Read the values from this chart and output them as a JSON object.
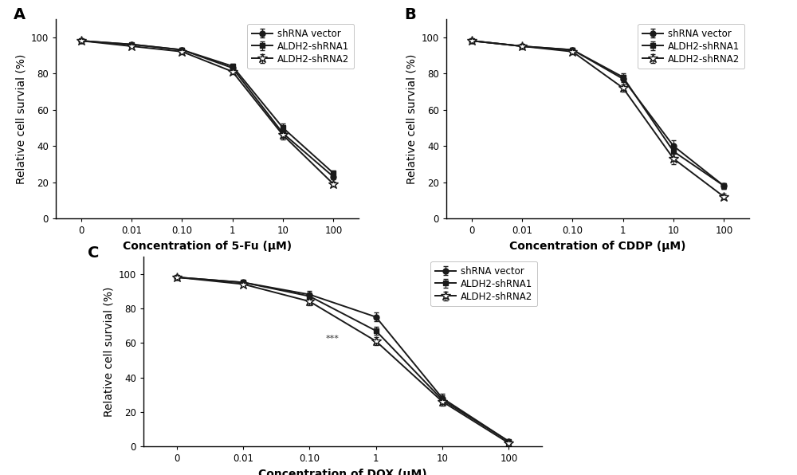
{
  "x_labels": [
    "0",
    "0.01",
    "0.10",
    "1",
    "10",
    "100"
  ],
  "x_positions": [
    0,
    1,
    2,
    3,
    4,
    5
  ],
  "panel_A": {
    "title": "A",
    "xlabel": "Concentration of 5-Fu (μM)",
    "ylabel": "Relative cell survial (%)",
    "series": [
      {
        "label": "shRNA vector",
        "marker": "o",
        "y": [
          98,
          96,
          93,
          83,
          47,
          23
        ],
        "yerr": [
          0.8,
          0.8,
          1.2,
          1.5,
          2.5,
          1.5
        ]
      },
      {
        "label": "ALDH2-shRNA1",
        "marker": "s",
        "y": [
          98,
          96,
          93,
          84,
          50,
          25
        ],
        "yerr": [
          0.8,
          0.8,
          1.2,
          1.5,
          2.5,
          1.5
        ]
      },
      {
        "label": "ALDH2-shRNA2",
        "marker": "*",
        "y": [
          98,
          95,
          92,
          81,
          46,
          19
        ],
        "yerr": [
          0.8,
          0.8,
          1.2,
          1.5,
          2.5,
          1.5
        ]
      }
    ]
  },
  "panel_B": {
    "title": "B",
    "xlabel": "Concentration of CDDP (μM)",
    "ylabel": "Relative cell survial (%)",
    "series": [
      {
        "label": "shRNA vector",
        "marker": "o",
        "y": [
          98,
          95,
          93,
          77,
          40,
          18
        ],
        "yerr": [
          0.8,
          0.8,
          1.2,
          2.0,
          3.0,
          1.5
        ]
      },
      {
        "label": "ALDH2-shRNA1",
        "marker": "s",
        "y": [
          98,
          95,
          93,
          78,
          37,
          18
        ],
        "yerr": [
          0.8,
          0.8,
          1.2,
          2.0,
          3.0,
          1.5
        ]
      },
      {
        "label": "ALDH2-shRNA2",
        "marker": "*",
        "y": [
          98,
          95,
          92,
          72,
          33,
          12
        ],
        "yerr": [
          0.8,
          0.8,
          1.2,
          2.0,
          3.0,
          1.5
        ]
      }
    ]
  },
  "panel_C": {
    "title": "C",
    "xlabel": "Concentration of DOX (μM)",
    "ylabel": "Relative cell survial (%)",
    "annotation": "***",
    "annotation_xi": 2,
    "annotation_yi": 60,
    "series": [
      {
        "label": "shRNA vector",
        "marker": "o",
        "y": [
          98,
          95,
          88,
          75,
          28,
          3
        ],
        "yerr": [
          0.8,
          1.0,
          2.0,
          2.5,
          2.5,
          0.8
        ]
      },
      {
        "label": "ALDH2-shRNA1",
        "marker": "s",
        "y": [
          98,
          95,
          87,
          67,
          27,
          3
        ],
        "yerr": [
          0.8,
          1.0,
          2.0,
          2.5,
          2.5,
          0.8
        ]
      },
      {
        "label": "ALDH2-shRNA2",
        "marker": "*",
        "y": [
          98,
          94,
          84,
          61,
          26,
          2
        ],
        "yerr": [
          0.8,
          1.0,
          2.0,
          2.5,
          2.5,
          0.8
        ]
      }
    ]
  },
  "line_color": "#1a1a1a",
  "line_width": 1.4,
  "marker_size": 5,
  "star_marker_size": 9,
  "capsize": 2.5,
  "ylim": [
    0,
    110
  ],
  "yticks": [
    0,
    20,
    40,
    60,
    80,
    100
  ],
  "legend_fontsize": 8.5,
  "axis_label_fontsize": 10,
  "tick_fontsize": 8.5,
  "panel_label_fontsize": 14,
  "background_color": "#ffffff"
}
